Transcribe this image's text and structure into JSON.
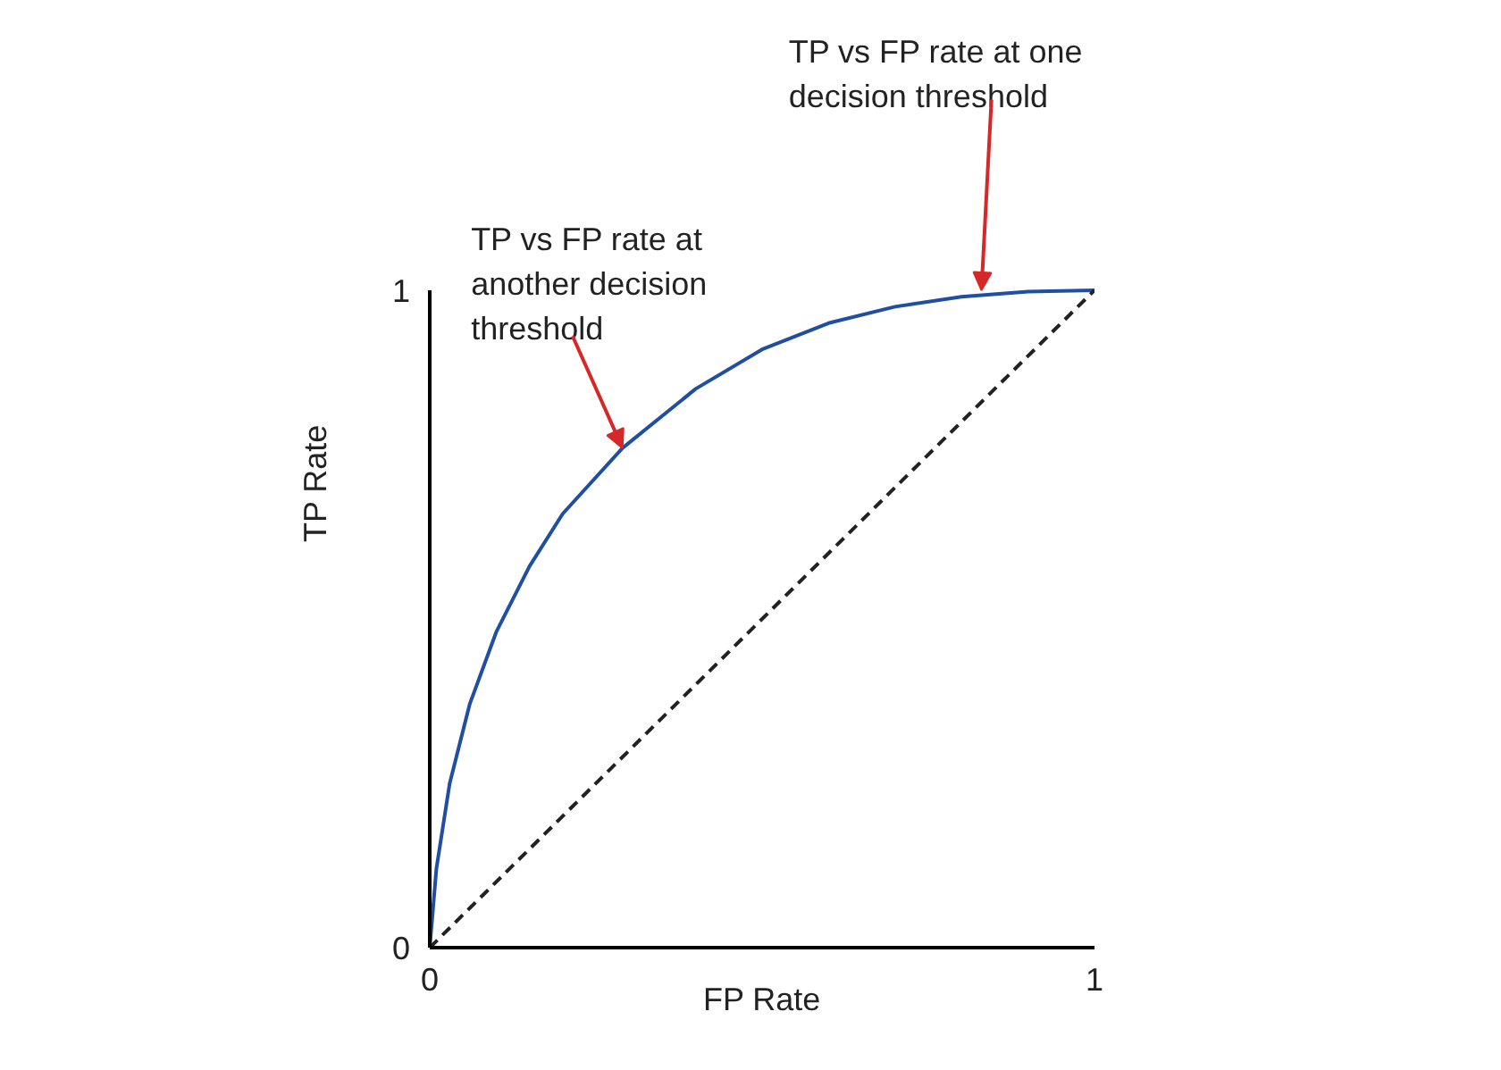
{
  "chart_data": {
    "type": "line",
    "xlabel": "FP Rate",
    "ylabel": "TP Rate",
    "xlim": [
      0,
      1
    ],
    "ylim": [
      0,
      1
    ],
    "xticks": [
      0,
      1
    ],
    "yticks": [
      0,
      1
    ],
    "grid": false,
    "marker": "none",
    "series": [
      {
        "color": "#1f4ea3",
        "line_style": "solid",
        "x": [
          0,
          0.01,
          0.03,
          0.06,
          0.1,
          0.15,
          0.2,
          0.29,
          0.4,
          0.5,
          0.6,
          0.7,
          0.8,
          0.9,
          1
        ],
        "values": [
          0,
          0.12,
          0.25,
          0.37,
          0.48,
          0.58,
          0.66,
          0.76,
          0.85,
          0.91,
          0.95,
          0.975,
          0.99,
          0.998,
          1
        ]
      },
      {
        "color": "#222222",
        "line_style": "dashed",
        "x": [
          0,
          1
        ],
        "values": [
          0,
          1
        ]
      }
    ],
    "annotations": [
      {
        "text": "TP vs FP rate at one\ndecision threshold",
        "x": 0.83,
        "y": 1.0
      },
      {
        "text": "TP vs FP rate at\nanother decision\nthreshold",
        "x": 0.29,
        "y": 0.76
      }
    ]
  }
}
